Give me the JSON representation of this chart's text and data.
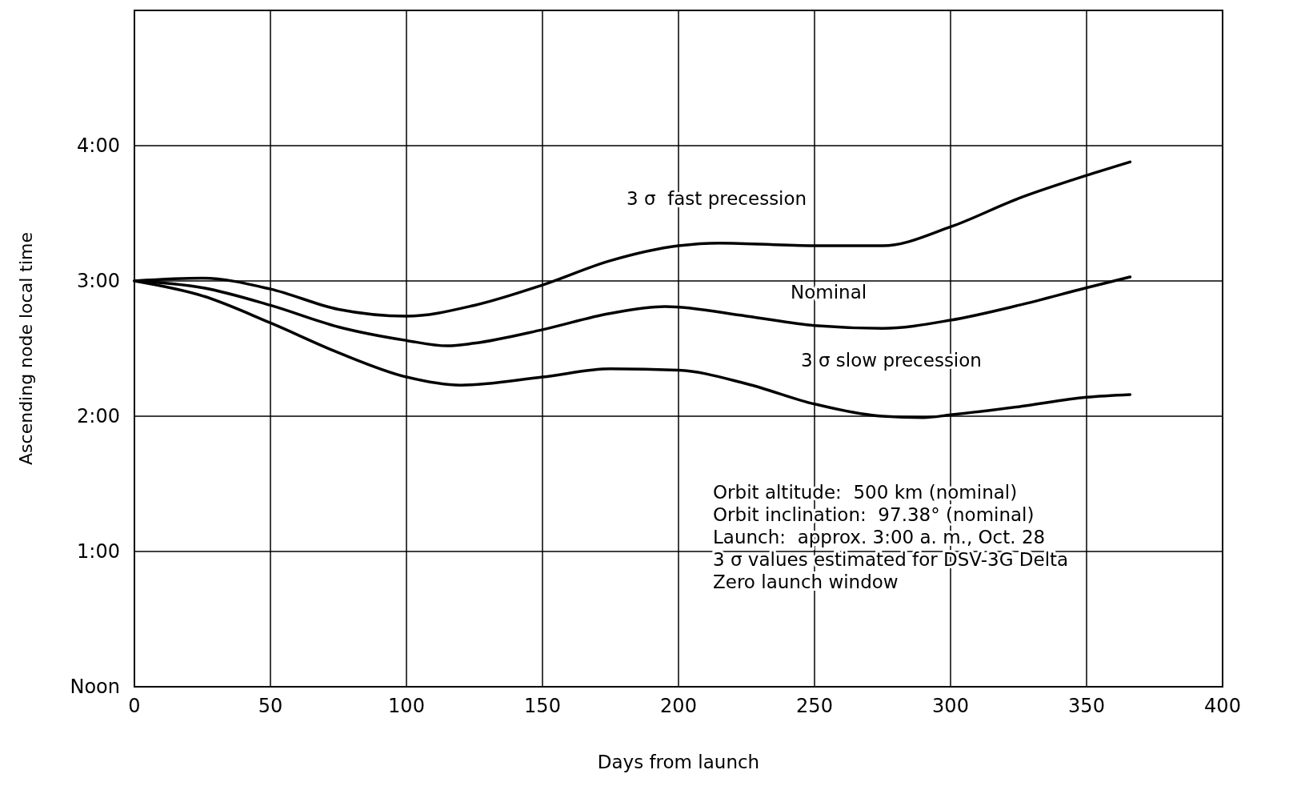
{
  "chart_data": {
    "type": "line",
    "xlabel": "Days from launch",
    "ylabel": "Ascending node local time",
    "xlim": [
      0,
      400
    ],
    "xticks": [
      0,
      50,
      100,
      150,
      200,
      250,
      300,
      350,
      400
    ],
    "ylim": [
      0,
      5
    ],
    "yticks": [
      {
        "value": 0,
        "label": "Noon"
      },
      {
        "value": 1,
        "label": "1:00"
      },
      {
        "value": 2,
        "label": "2:00"
      },
      {
        "value": 3,
        "label": "3:00"
      },
      {
        "value": 4,
        "label": "4:00"
      }
    ],
    "grid": true,
    "marker": "none",
    "line_style": "solid",
    "series": [
      {
        "name": "3 σ  fast precession",
        "color": "#000000",
        "x": [
          0,
          25,
          50,
          75,
          100,
          125,
          150,
          175,
          200,
          215,
          250,
          275,
          300,
          325,
          350,
          366
        ],
        "values": [
          3.0,
          3.02,
          2.94,
          2.79,
          2.74,
          2.82,
          2.97,
          3.15,
          3.26,
          3.28,
          3.26,
          3.26,
          3.4,
          3.61,
          3.78,
          3.88
        ]
      },
      {
        "name": "Nominal",
        "color": "#000000",
        "x": [
          0,
          25,
          50,
          75,
          100,
          115,
          125,
          150,
          175,
          195,
          225,
          250,
          275,
          300,
          325,
          350,
          366
        ],
        "values": [
          3.0,
          2.95,
          2.82,
          2.66,
          2.56,
          2.52,
          2.54,
          2.64,
          2.76,
          2.81,
          2.74,
          2.67,
          2.65,
          2.71,
          2.82,
          2.95,
          3.03
        ]
      },
      {
        "name": "3 σ slow precession",
        "color": "#000000",
        "x": [
          0,
          25,
          50,
          75,
          100,
          120,
          150,
          175,
          200,
          225,
          250,
          275,
          290,
          300,
          325,
          350,
          366
        ],
        "values": [
          3.0,
          2.89,
          2.69,
          2.47,
          2.29,
          2.23,
          2.29,
          2.35,
          2.34,
          2.24,
          2.09,
          2.0,
          1.99,
          2.01,
          2.07,
          2.14,
          2.16
        ]
      }
    ],
    "annotations": [
      "Orbit altitude:  500 km (nominal)",
      "Orbit inclination:  97.38° (nominal)",
      "Launch:  approx. 3:00 a. m., Oct. 28",
      "3 σ values estimated for DSV-3G Delta",
      "Zero launch window"
    ]
  }
}
